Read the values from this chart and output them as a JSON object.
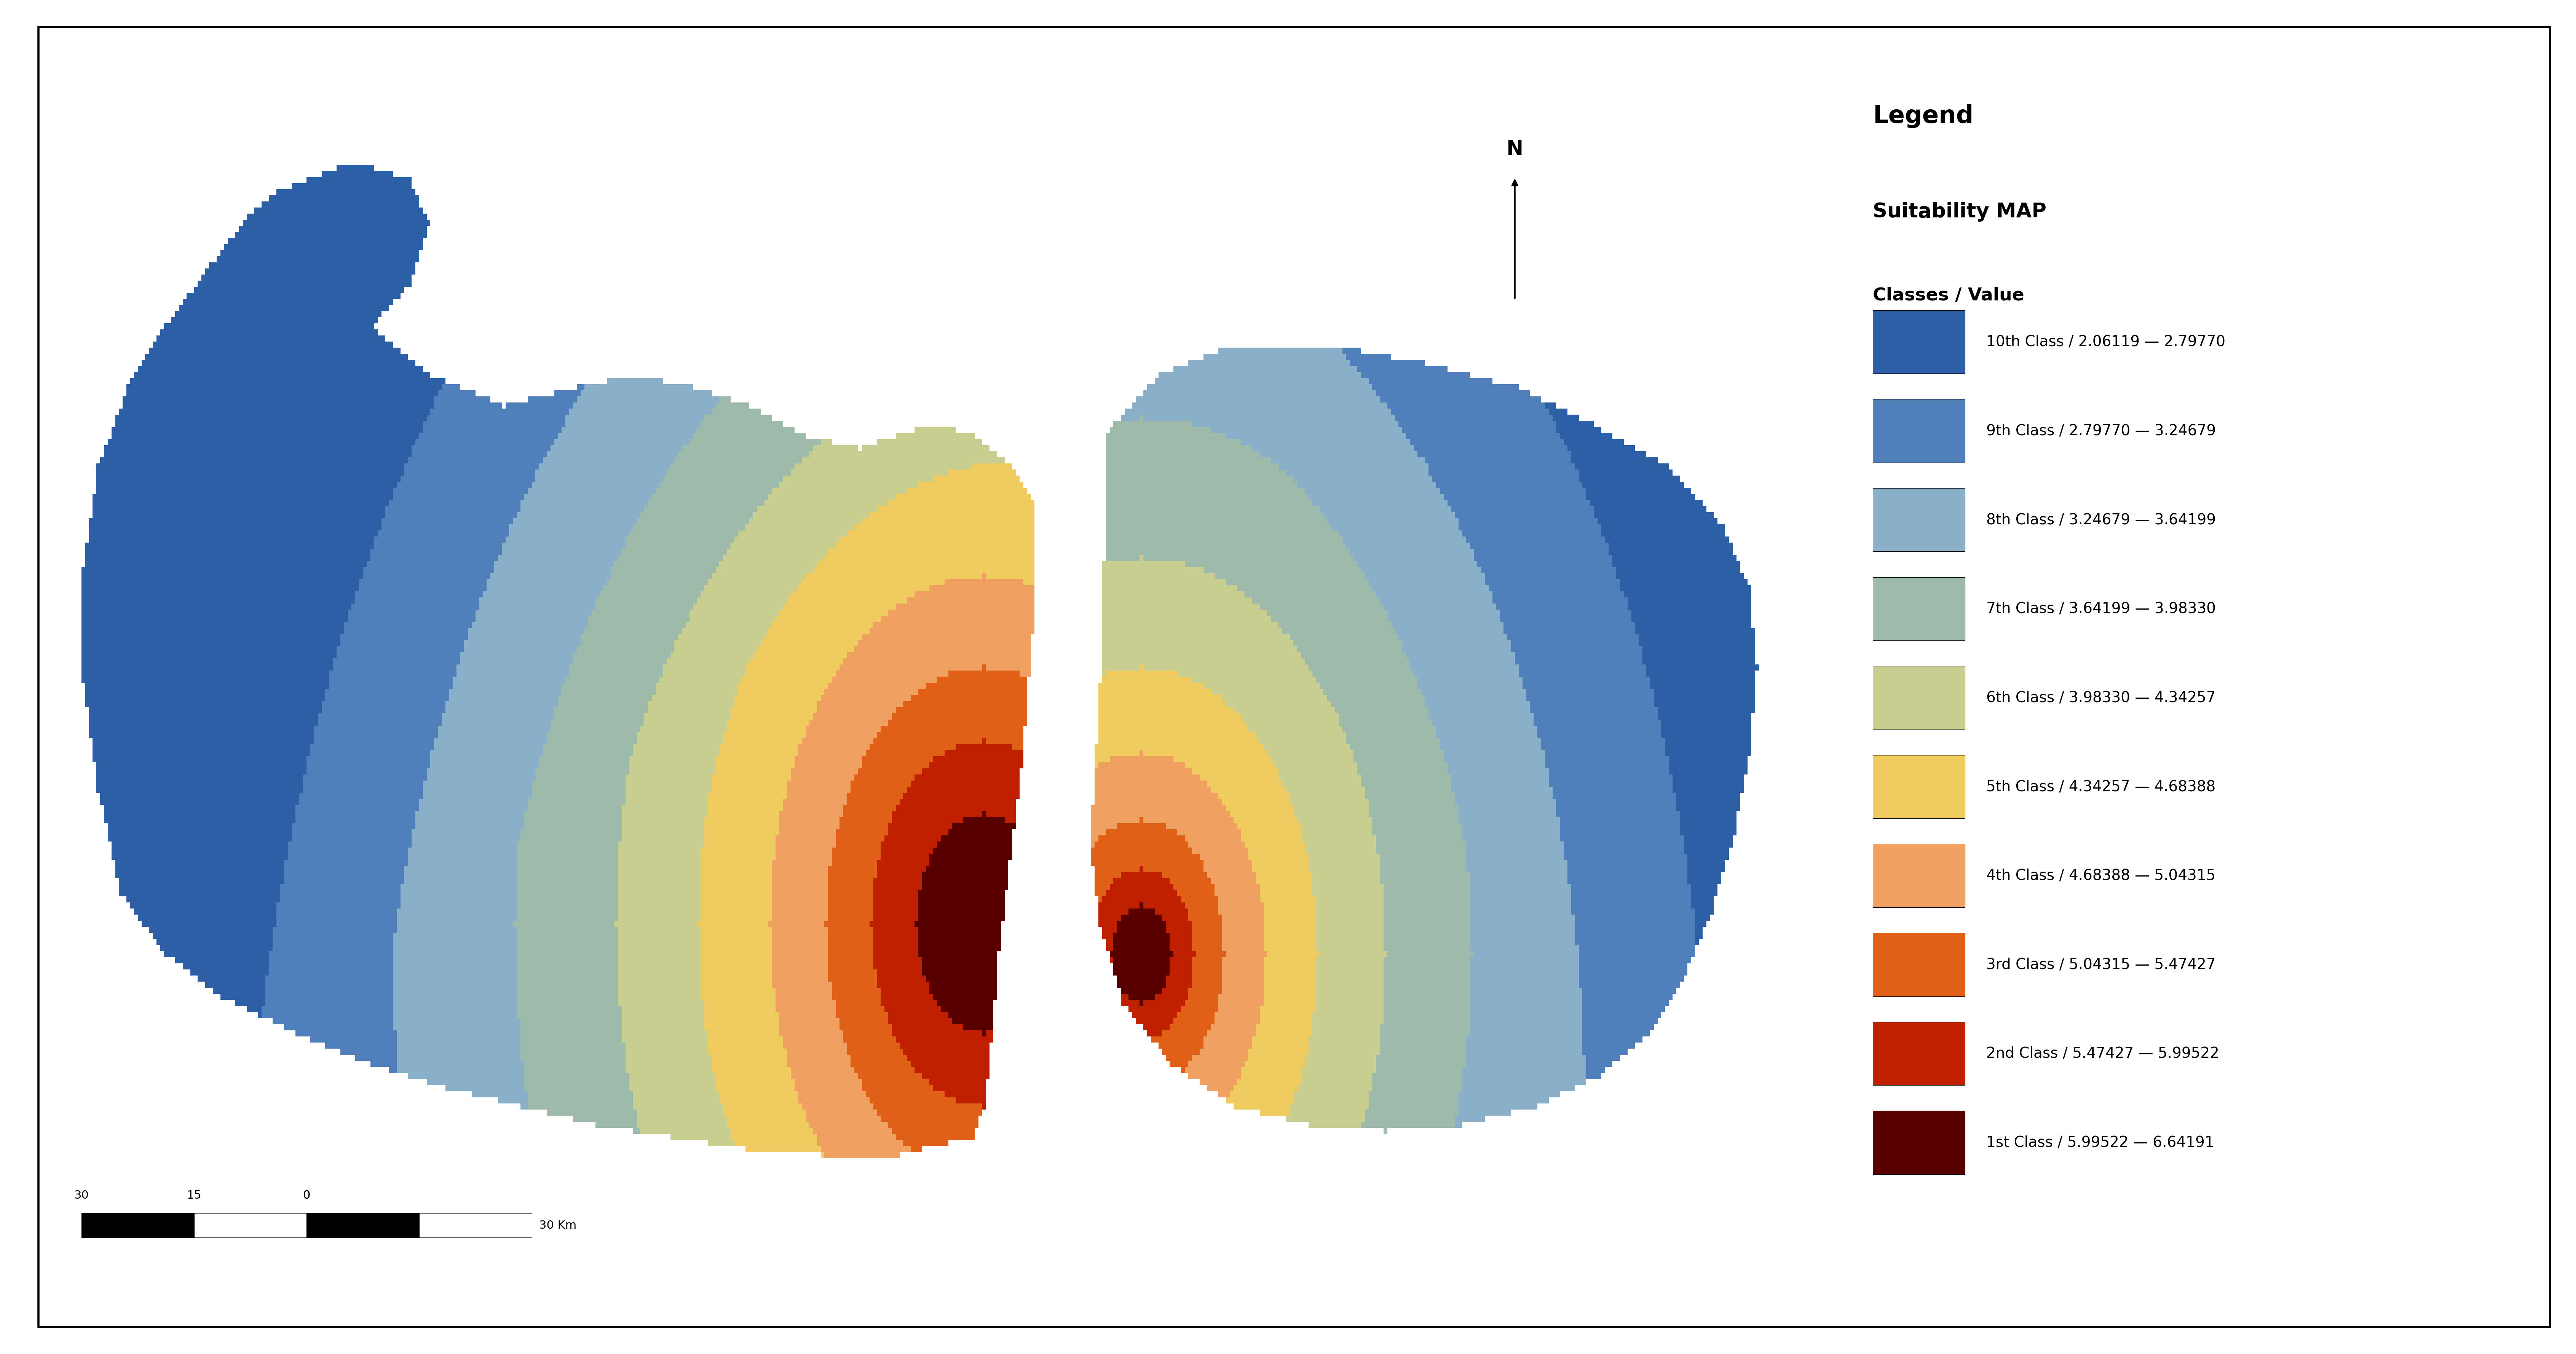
{
  "title": "Suitability MAP",
  "legend_title": "Legend",
  "classes_label": "Classes / Value",
  "classes": [
    {
      "label": "10th Class / 2.06119 — 2.79770",
      "color": "#2d5fa6"
    },
    {
      "label": "9th Class / 2.79770 — 3.24679",
      "color": "#5080bb"
    },
    {
      "label": "8th Class / 3.24679 — 3.64199",
      "color": "#8aafc8"
    },
    {
      "label": "7th Class / 3.64199 — 3.98330",
      "color": "#9dbaaa"
    },
    {
      "label": "6th Class / 3.98330 — 4.34257",
      "color": "#c8cd90"
    },
    {
      "label": "5th Class / 4.34257 — 4.68388",
      "color": "#f0cb60"
    },
    {
      "label": "4th Class / 4.68388 — 5.04315",
      "color": "#f0a060"
    },
    {
      "label": "3rd Class / 5.04315 — 5.47427",
      "color": "#e06018"
    },
    {
      "label": "2nd Class / 5.47427 — 5.99522",
      "color": "#c02000"
    },
    {
      "label": "1st Class / 5.99522 — 6.64191",
      "color": "#580000"
    }
  ],
  "fig_width": 67.66,
  "fig_height": 35.56,
  "dpi": 100,
  "background": "#ffffff"
}
